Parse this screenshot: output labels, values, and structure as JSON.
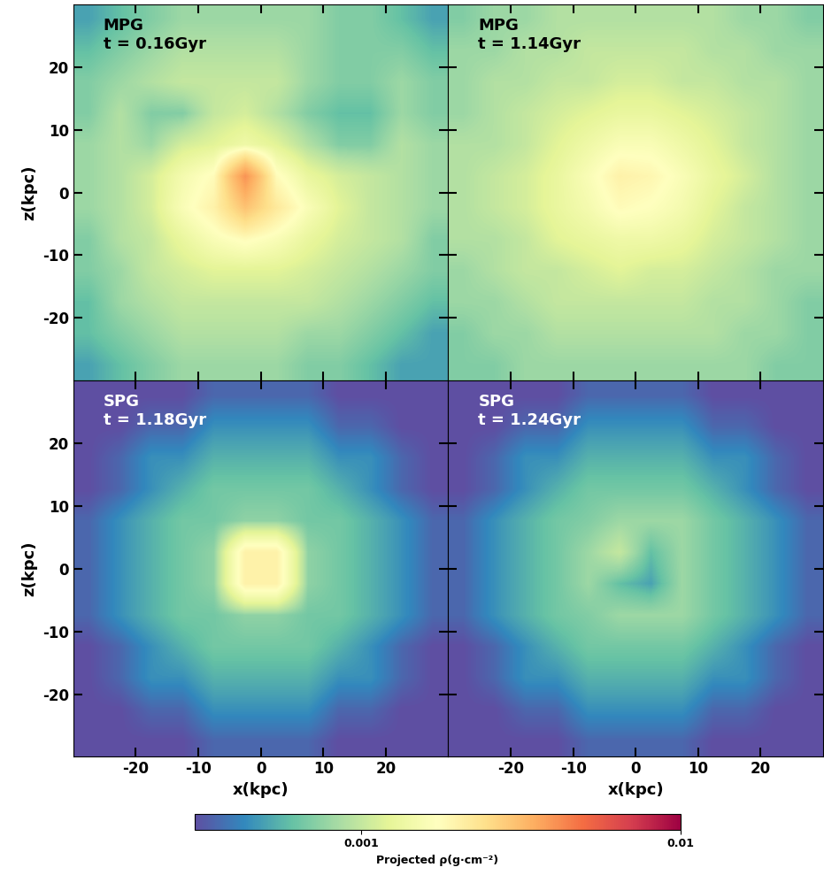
{
  "chart_data": [
    {
      "type": "heatmap",
      "title": "MPG",
      "subtitle": "t = 0.16Gyr",
      "color": "black",
      "ylabel": "z(kpc)",
      "tick_labels": "y",
      "xlim": [
        -30,
        30
      ],
      "ylim": [
        -30,
        30
      ],
      "xticks": [
        -20,
        -10,
        0,
        10,
        20
      ],
      "yticks": [
        -20,
        -10,
        0,
        10,
        20
      ],
      "cells": [
        [
          0.0005,
          0.0006,
          0.0007,
          0.0008,
          0.0008,
          0.0008,
          0.0008,
          0.0008,
          0.0007,
          0.0007,
          0.0006,
          0.0005
        ],
        [
          0.0006,
          0.0007,
          0.0008,
          0.0009,
          0.0009,
          0.0009,
          0.0009,
          0.0008,
          0.0007,
          0.0007,
          0.0007,
          0.0006
        ],
        [
          0.0007,
          0.0008,
          0.0009,
          0.001,
          0.001,
          0.001,
          0.001,
          0.0008,
          0.0007,
          0.0007,
          0.0008,
          0.0007
        ],
        [
          0.0007,
          0.0009,
          0.0007,
          0.0007,
          0.001,
          0.0011,
          0.0009,
          0.0007,
          0.0006,
          0.0006,
          0.0008,
          0.0007
        ],
        [
          0.0008,
          0.0009,
          0.0008,
          0.0011,
          0.0012,
          0.0014,
          0.0012,
          0.0009,
          0.0007,
          0.0007,
          0.0009,
          0.0008
        ],
        [
          0.0008,
          0.0009,
          0.0011,
          0.0015,
          0.0018,
          0.004,
          0.0018,
          0.0013,
          0.0011,
          0.001,
          0.0009,
          0.0008
        ],
        [
          0.0008,
          0.0009,
          0.0011,
          0.0016,
          0.002,
          0.003,
          0.0022,
          0.0016,
          0.0012,
          0.001,
          0.0009,
          0.0008
        ],
        [
          0.0007,
          0.0009,
          0.001,
          0.0013,
          0.0016,
          0.0018,
          0.0016,
          0.0013,
          0.0011,
          0.001,
          0.0009,
          0.0007
        ],
        [
          0.0007,
          0.0008,
          0.001,
          0.0011,
          0.0012,
          0.0012,
          0.0012,
          0.0011,
          0.001,
          0.0009,
          0.0008,
          0.0007
        ],
        [
          0.0006,
          0.0008,
          0.0009,
          0.001,
          0.001,
          0.001,
          0.001,
          0.001,
          0.0009,
          0.0008,
          0.0007,
          0.0006
        ],
        [
          0.0006,
          0.0007,
          0.0008,
          0.0009,
          0.0009,
          0.0009,
          0.0009,
          0.0008,
          0.0008,
          0.0007,
          0.0006,
          0.0005
        ],
        [
          0.0005,
          0.0006,
          0.0007,
          0.0008,
          0.0008,
          0.0008,
          0.0008,
          0.0007,
          0.0007,
          0.0006,
          0.0005,
          0.0005
        ]
      ]
    },
    {
      "type": "heatmap",
      "title": "MPG",
      "subtitle": "t = 1.14Gyr",
      "color": "black",
      "tick_labels": false,
      "xlim": [
        -30,
        30
      ],
      "ylim": [
        -30,
        30
      ],
      "xticks": [
        -20,
        -10,
        0,
        10,
        20
      ],
      "yticks": [
        -20,
        -10,
        0,
        10,
        20
      ],
      "cells": [
        [
          0.0007,
          0.0008,
          0.0008,
          0.0009,
          0.0009,
          0.0009,
          0.0009,
          0.0009,
          0.0009,
          0.0008,
          0.0008,
          0.0007
        ],
        [
          0.0008,
          0.0008,
          0.0009,
          0.0009,
          0.001,
          0.001,
          0.001,
          0.001,
          0.0009,
          0.0009,
          0.0008,
          0.0008
        ],
        [
          0.0008,
          0.0009,
          0.0009,
          0.001,
          0.001,
          0.0011,
          0.0011,
          0.001,
          0.001,
          0.0009,
          0.0009,
          0.0008
        ],
        [
          0.0008,
          0.0009,
          0.001,
          0.0011,
          0.0012,
          0.0013,
          0.0013,
          0.0012,
          0.0011,
          0.001,
          0.0009,
          0.0008
        ],
        [
          0.0009,
          0.0009,
          0.001,
          0.0012,
          0.0014,
          0.0016,
          0.0016,
          0.0014,
          0.0012,
          0.001,
          0.0009,
          0.0008
        ],
        [
          0.0009,
          0.001,
          0.0011,
          0.0013,
          0.0016,
          0.002,
          0.0019,
          0.0016,
          0.0013,
          0.0011,
          0.0009,
          0.0008
        ],
        [
          0.0009,
          0.001,
          0.0011,
          0.0013,
          0.0015,
          0.0018,
          0.0017,
          0.0015,
          0.0012,
          0.001,
          0.0009,
          0.0008
        ],
        [
          0.0009,
          0.0009,
          0.001,
          0.0012,
          0.0013,
          0.0014,
          0.0014,
          0.0013,
          0.0011,
          0.001,
          0.0009,
          0.0008
        ],
        [
          0.0008,
          0.0009,
          0.001,
          0.001,
          0.0011,
          0.0012,
          0.0011,
          0.0011,
          0.001,
          0.0009,
          0.0008,
          0.0008
        ],
        [
          0.0008,
          0.0008,
          0.0009,
          0.001,
          0.001,
          0.001,
          0.001,
          0.001,
          0.0009,
          0.0009,
          0.0008,
          0.0007
        ],
        [
          0.0007,
          0.0008,
          0.0008,
          0.0009,
          0.0009,
          0.0009,
          0.0009,
          0.0009,
          0.0009,
          0.0008,
          0.0008,
          0.0007
        ],
        [
          0.0007,
          0.0007,
          0.0008,
          0.0008,
          0.0008,
          0.0008,
          0.0008,
          0.0008,
          0.0008,
          0.0008,
          0.0007,
          0.0007
        ]
      ]
    },
    {
      "type": "heatmap",
      "title": "SPG",
      "subtitle": "t = 1.18Gyr",
      "color": "white",
      "xlabel": "x(kpc)",
      "ylabel": "z(kpc)",
      "xlim": [
        -30,
        30
      ],
      "ylim": [
        -30,
        30
      ],
      "xticks": [
        -20,
        -10,
        0,
        10,
        20
      ],
      "yticks": [
        -20,
        -10,
        0,
        10,
        20
      ],
      "cells": [
        [
          0.0003,
          0.0003,
          0.0003,
          0.0003,
          0.00035,
          0.00035,
          0.00035,
          0.00035,
          0.0003,
          0.0003,
          0.0003,
          0.0003
        ],
        [
          0.0003,
          0.0003,
          0.00035,
          0.00035,
          0.00045,
          0.00045,
          0.00045,
          0.00045,
          0.00035,
          0.00035,
          0.0003,
          0.0003
        ],
        [
          0.0003,
          0.00035,
          0.00045,
          0.00045,
          0.00055,
          0.00055,
          0.00055,
          0.00055,
          0.00045,
          0.00045,
          0.00035,
          0.0003
        ],
        [
          0.0003,
          0.00035,
          0.00045,
          0.00055,
          0.00065,
          0.00065,
          0.00065,
          0.00065,
          0.00055,
          0.00045,
          0.00035,
          0.0003
        ],
        [
          0.00035,
          0.00045,
          0.00055,
          0.00065,
          0.00065,
          0.00075,
          0.00075,
          0.00065,
          0.00065,
          0.00055,
          0.00045,
          0.00035
        ],
        [
          0.00035,
          0.00045,
          0.00055,
          0.00065,
          0.00075,
          0.002,
          0.002,
          0.00075,
          0.00065,
          0.00055,
          0.00045,
          0.00035
        ],
        [
          0.00035,
          0.00045,
          0.00055,
          0.00065,
          0.00075,
          0.002,
          0.002,
          0.00075,
          0.00065,
          0.00055,
          0.00045,
          0.00035
        ],
        [
          0.00035,
          0.00045,
          0.00055,
          0.00065,
          0.00065,
          0.00075,
          0.00075,
          0.00065,
          0.00065,
          0.00055,
          0.00045,
          0.00035
        ],
        [
          0.0003,
          0.00035,
          0.00045,
          0.00055,
          0.00065,
          0.00065,
          0.00065,
          0.00065,
          0.00055,
          0.00045,
          0.00035,
          0.0003
        ],
        [
          0.0003,
          0.00035,
          0.00045,
          0.00045,
          0.00055,
          0.00055,
          0.00055,
          0.00055,
          0.00045,
          0.00045,
          0.00035,
          0.0003
        ],
        [
          0.0003,
          0.0003,
          0.00035,
          0.00035,
          0.00045,
          0.00045,
          0.00045,
          0.00045,
          0.00035,
          0.00035,
          0.0003,
          0.0003
        ],
        [
          0.0003,
          0.0003,
          0.0003,
          0.0003,
          0.00035,
          0.00035,
          0.00035,
          0.00035,
          0.0003,
          0.0003,
          0.0003,
          0.0003
        ]
      ]
    },
    {
      "type": "heatmap",
      "title": "SPG",
      "subtitle": "t = 1.24Gyr",
      "color": "white",
      "xlabel": "x(kpc)",
      "tick_labels": "x",
      "xlim": [
        -30,
        30
      ],
      "ylim": [
        -30,
        30
      ],
      "xticks": [
        -20,
        -10,
        0,
        10,
        20
      ],
      "yticks": [
        -20,
        -10,
        0,
        10,
        20
      ],
      "cells": [
        [
          0.0003,
          0.0003,
          0.0003,
          0.0003,
          0.00035,
          0.00035,
          0.00035,
          0.00035,
          0.0003,
          0.0003,
          0.0003,
          0.0003
        ],
        [
          0.0003,
          0.0003,
          0.00035,
          0.00035,
          0.00045,
          0.00045,
          0.00045,
          0.00045,
          0.00035,
          0.00035,
          0.0003,
          0.0003
        ],
        [
          0.0003,
          0.00035,
          0.00045,
          0.00045,
          0.00055,
          0.00055,
          0.00055,
          0.00055,
          0.00045,
          0.00045,
          0.00035,
          0.0003
        ],
        [
          0.0003,
          0.00035,
          0.00045,
          0.00055,
          0.00065,
          0.00065,
          0.00065,
          0.00065,
          0.00055,
          0.00045,
          0.00035,
          0.0003
        ],
        [
          0.00035,
          0.00045,
          0.00055,
          0.00065,
          0.0007,
          0.0008,
          0.0008,
          0.0008,
          0.00065,
          0.00055,
          0.00045,
          0.00035
        ],
        [
          0.00035,
          0.00045,
          0.00055,
          0.00065,
          0.0008,
          0.001,
          0.0006,
          0.0008,
          0.00065,
          0.00055,
          0.00045,
          0.00035
        ],
        [
          0.00035,
          0.00045,
          0.00055,
          0.00065,
          0.0008,
          0.0006,
          0.0005,
          0.0008,
          0.00065,
          0.00055,
          0.00045,
          0.00035
        ],
        [
          0.00035,
          0.00045,
          0.00055,
          0.00065,
          0.0007,
          0.0008,
          0.0008,
          0.0008,
          0.00065,
          0.00055,
          0.00045,
          0.00035
        ],
        [
          0.0003,
          0.00035,
          0.00045,
          0.00055,
          0.00065,
          0.00065,
          0.00065,
          0.00065,
          0.00055,
          0.00045,
          0.00035,
          0.0003
        ],
        [
          0.0003,
          0.00035,
          0.00045,
          0.00045,
          0.00055,
          0.00055,
          0.00055,
          0.00055,
          0.00045,
          0.00045,
          0.00035,
          0.0003
        ],
        [
          0.0003,
          0.0003,
          0.00035,
          0.00035,
          0.00045,
          0.00045,
          0.00045,
          0.00045,
          0.00035,
          0.00035,
          0.0003,
          0.0003
        ],
        [
          0.0003,
          0.0003,
          0.0003,
          0.0003,
          0.00035,
          0.00035,
          0.00035,
          0.00035,
          0.0003,
          0.0003,
          0.0003,
          0.0003
        ]
      ]
    }
  ],
  "colorbar": {
    "label": "Projected ρ(g·cm⁻²)",
    "log": true,
    "range": [
      0.0003,
      0.01
    ],
    "ticks": [
      0.001,
      0.01
    ]
  }
}
